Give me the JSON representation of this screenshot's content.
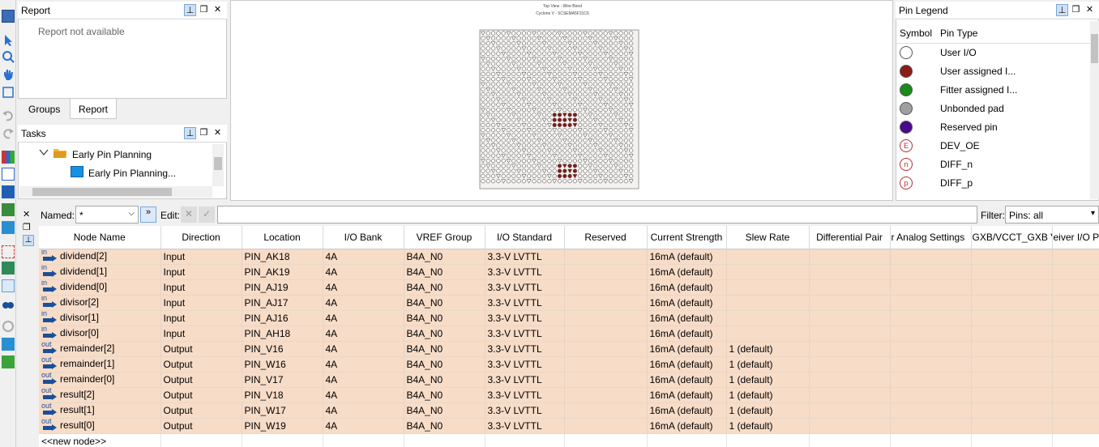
{
  "report_panel": {
    "title": "Report",
    "message": "Report not available"
  },
  "tabs": [
    {
      "label": "Groups"
    },
    {
      "label": "Report"
    }
  ],
  "tasks_panel": {
    "title": "Tasks",
    "items": [
      {
        "label": "Early Pin Planning"
      },
      {
        "label": "Early Pin Planning..."
      }
    ]
  },
  "chip_view": {
    "title": "Top View - Wire Bond",
    "subtitle": "Cyclone V - 5CSEMA5F31C6"
  },
  "pin_legend": {
    "title": "Pin Legend",
    "col_symbol": "Symbol",
    "col_type": "Pin Type",
    "items": [
      {
        "label": "User I/O",
        "color": "#ffffff",
        "icon": "open-circle-icon"
      },
      {
        "label": "User assigned I...",
        "color": "#8b1a1a",
        "icon": "filled-circle-icon"
      },
      {
        "label": "Fitter assigned I...",
        "color": "#1a8a1a",
        "icon": "filled-circle-icon"
      },
      {
        "label": "Unbonded pad",
        "color": "#a0a0a0",
        "icon": "filled-circle-icon"
      },
      {
        "label": "Reserved pin",
        "color": "#4b0a8c",
        "icon": "filled-circle-icon"
      },
      {
        "label": "DEV_OE",
        "letter": "E",
        "icon": "letter-circle-icon"
      },
      {
        "label": "DIFF_n",
        "letter": "n",
        "icon": "letter-hexagon-icon"
      },
      {
        "label": "DIFF_p",
        "letter": "p",
        "icon": "letter-hexagon-icon"
      }
    ]
  },
  "filter_bar": {
    "named_label": "Named:",
    "named_value": "*",
    "edit_label": "Edit:",
    "filter_label": "Filter:",
    "filter_value": "Pins: all"
  },
  "table": {
    "columns": [
      "Node Name",
      "Direction",
      "Location",
      "I/O Bank",
      "VREF Group",
      "I/O Standard",
      "Reserved",
      "Current Strength",
      "Slew Rate",
      "Differential Pair",
      "r Analog Settings",
      "GXB/VCCT_GXB V",
      "eiver I/O Pi"
    ],
    "rows": [
      {
        "dir_icon": "in",
        "name": "dividend[2]",
        "direction": "Input",
        "location": "PIN_AK18",
        "bank": "4A",
        "vref": "B4A_N0",
        "std": "3.3-V LVTTL",
        "reserved": "",
        "current": "16mA (default)",
        "slew": ""
      },
      {
        "dir_icon": "in",
        "name": "dividend[1]",
        "direction": "Input",
        "location": "PIN_AK19",
        "bank": "4A",
        "vref": "B4A_N0",
        "std": "3.3-V LVTTL",
        "reserved": "",
        "current": "16mA (default)",
        "slew": ""
      },
      {
        "dir_icon": "in",
        "name": "dividend[0]",
        "direction": "Input",
        "location": "PIN_AJ19",
        "bank": "4A",
        "vref": "B4A_N0",
        "std": "3.3-V LVTTL",
        "reserved": "",
        "current": "16mA (default)",
        "slew": ""
      },
      {
        "dir_icon": "in",
        "name": "divisor[2]",
        "direction": "Input",
        "location": "PIN_AJ17",
        "bank": "4A",
        "vref": "B4A_N0",
        "std": "3.3-V LVTTL",
        "reserved": "",
        "current": "16mA (default)",
        "slew": ""
      },
      {
        "dir_icon": "in",
        "name": "divisor[1]",
        "direction": "Input",
        "location": "PIN_AJ16",
        "bank": "4A",
        "vref": "B4A_N0",
        "std": "3.3-V LVTTL",
        "reserved": "",
        "current": "16mA (default)",
        "slew": ""
      },
      {
        "dir_icon": "in",
        "name": "divisor[0]",
        "direction": "Input",
        "location": "PIN_AH18",
        "bank": "4A",
        "vref": "B4A_N0",
        "std": "3.3-V LVTTL",
        "reserved": "",
        "current": "16mA (default)",
        "slew": ""
      },
      {
        "dir_icon": "out",
        "name": "remainder[2]",
        "direction": "Output",
        "location": "PIN_V16",
        "bank": "4A",
        "vref": "B4A_N0",
        "std": "3.3-V LVTTL",
        "reserved": "",
        "current": "16mA (default)",
        "slew": "1 (default)"
      },
      {
        "dir_icon": "out",
        "name": "remainder[1]",
        "direction": "Output",
        "location": "PIN_W16",
        "bank": "4A",
        "vref": "B4A_N0",
        "std": "3.3-V LVTTL",
        "reserved": "",
        "current": "16mA (default)",
        "slew": "1 (default)"
      },
      {
        "dir_icon": "out",
        "name": "remainder[0]",
        "direction": "Output",
        "location": "PIN_V17",
        "bank": "4A",
        "vref": "B4A_N0",
        "std": "3.3-V LVTTL",
        "reserved": "",
        "current": "16mA (default)",
        "slew": "1 (default)"
      },
      {
        "dir_icon": "out",
        "name": "result[2]",
        "direction": "Output",
        "location": "PIN_V18",
        "bank": "4A",
        "vref": "B4A_N0",
        "std": "3.3-V LVTTL",
        "reserved": "",
        "current": "16mA (default)",
        "slew": "1 (default)"
      },
      {
        "dir_icon": "out",
        "name": "result[1]",
        "direction": "Output",
        "location": "PIN_W17",
        "bank": "4A",
        "vref": "B4A_N0",
        "std": "3.3-V LVTTL",
        "reserved": "",
        "current": "16mA (default)",
        "slew": "1 (default)"
      },
      {
        "dir_icon": "out",
        "name": "result[0]",
        "direction": "Output",
        "location": "PIN_W19",
        "bank": "4A",
        "vref": "B4A_N0",
        "std": "3.3-V LVTTL",
        "reserved": "",
        "current": "16mA (default)",
        "slew": "1 (default)"
      }
    ],
    "new_node": "<<new node>>"
  }
}
